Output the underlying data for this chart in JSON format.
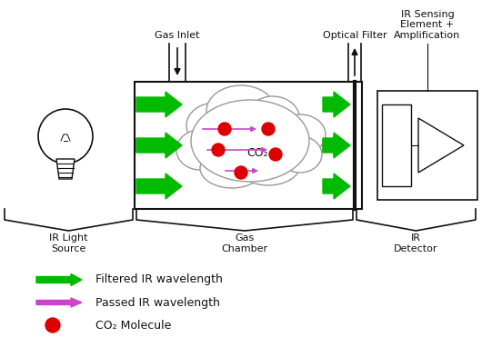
{
  "background_color": "#ffffff",
  "fig_width": 5.52,
  "fig_height": 3.93,
  "dpi": 100,
  "green_color": "#00bb00",
  "purple_color": "#cc44cc",
  "red_color": "#dd0000",
  "black_color": "#111111",
  "labels": {
    "gas_inlet": "Gas Inlet",
    "optical_filter": "Optical Filter",
    "ir_sensing": "IR Sensing\nElement +\nAmplification",
    "ir_light_source": "IR Light\nSource",
    "gas_chamber": "Gas\nChamber",
    "ir_detector": "IR\nDetector",
    "co2": "CO₂",
    "legend_filtered": "Filtered IR wavelength",
    "legend_passed": "Passed IR wavelength",
    "legend_co2": "CO₂ Molecule"
  }
}
